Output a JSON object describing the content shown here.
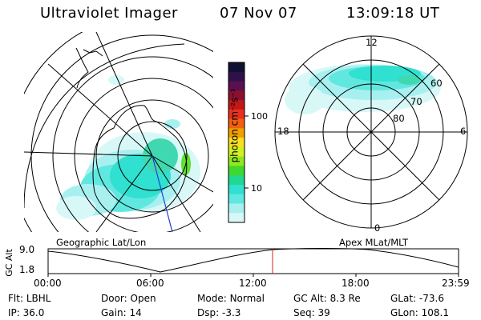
{
  "header": {
    "title": "Ultraviolet Imager",
    "date": "07 Nov 07",
    "time": "13:09:18 UT"
  },
  "colorbar": {
    "unit_label": "photon cm⁻²s⁻¹",
    "ticks": [
      "100",
      "10"
    ],
    "colors": [
      "#101030",
      "#301048",
      "#5a1050",
      "#8a1030",
      "#c01818",
      "#e83020",
      "#f06010",
      "#f0a000",
      "#f8e020",
      "#d0f020",
      "#90e820",
      "#40d830",
      "#20d890",
      "#30e0d0",
      "#60e8e0",
      "#a8f0f0",
      "#d8f8f8"
    ]
  },
  "left_map": {
    "caption": "Geographic Lat/Lon"
  },
  "right_map": {
    "caption": "Apex MLat/MLT",
    "mlt_labels": [
      "12",
      "18",
      "6",
      "0"
    ],
    "lat_labels": [
      "60",
      "70",
      "80"
    ]
  },
  "altitude_plot": {
    "ylabel": "GC Alt",
    "yticks": [
      "9.0",
      "1.8"
    ],
    "xticks": [
      "00:00",
      "06:00",
      "12:00",
      "18:00",
      "23:59"
    ]
  },
  "info": {
    "row1": [
      {
        "key": "Flt:",
        "value": "LBHL"
      },
      {
        "key": "Door:",
        "value": "Open"
      },
      {
        "key": "Mode:",
        "value": "Normal"
      },
      {
        "key": "GC Alt:",
        "value": "8.3 Re"
      },
      {
        "key": "GLat:",
        "value": "-73.6"
      }
    ],
    "row2": [
      {
        "key": "IP:",
        "value": "36.0"
      },
      {
        "key": "Gain:",
        "value": "14"
      },
      {
        "key": "Dsp:",
        "value": "-3.3"
      },
      {
        "key": "Seq:",
        "value": "39"
      },
      {
        "key": "GLon:",
        "value": "108.1"
      }
    ]
  }
}
